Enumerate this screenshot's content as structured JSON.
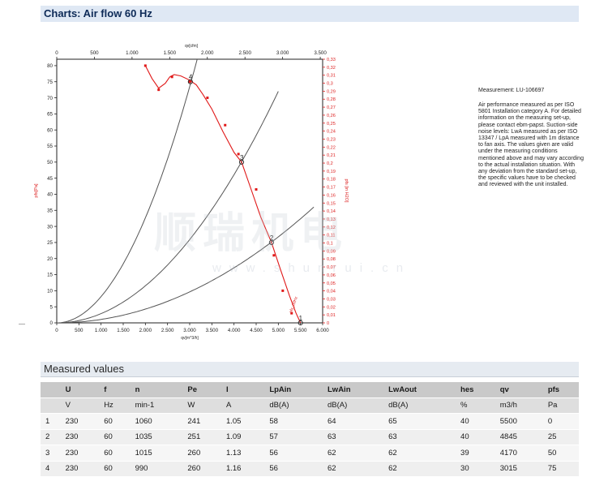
{
  "header": {
    "title": "Charts: Air flow 60 Hz"
  },
  "side_note": {
    "measurement": "Measurement: LU-106697",
    "text": "Air performance measured as per ISO 5801 Installation category A. For detailed information on the measuring set-up, please contact ebm-papst. Suction-side noise levels: LwA measured as per ISO 13347 / LpA measured with 1m distance to fan axis. The values given are valid under the measuring conditions mentioned above and may vary according to the actual installation situation. With any deviation from the standard set-up, the specific values have to be checked and reviewed with the unit installed."
  },
  "watermark": {
    "main": "顺瑞机电",
    "url": "www.shunrui.cn"
  },
  "chart_data": {
    "type": "line",
    "top_axis": {
      "label": "qv[cfm]",
      "ticks": [
        0,
        500,
        1000,
        1500,
        2000,
        2500,
        3000,
        3500
      ],
      "range": [
        0,
        3500
      ]
    },
    "bottom_axis": {
      "label": "qv[m^3/h]",
      "ticks": [
        0,
        500,
        1000,
        1500,
        2000,
        2500,
        3000,
        3500,
        4000,
        4500,
        5000,
        5500,
        6000
      ],
      "range": [
        0,
        6000
      ]
    },
    "left_axis": {
      "label": "pfs[Pa]",
      "ticks": [
        0,
        5,
        10,
        15,
        20,
        25,
        30,
        35,
        40,
        45,
        50,
        55,
        60,
        65,
        70,
        75,
        80
      ],
      "range": [
        0,
        82
      ]
    },
    "right_axis": {
      "label": "pfs [in H2O]",
      "ticks": [
        "0",
        "0.01",
        "0.02",
        "0.03",
        "0.04",
        "0.05",
        "0.06",
        "0.07",
        "0.08",
        "0.09",
        "0.1",
        "0.11",
        "0.12",
        "0.13",
        "0.14",
        "0.15",
        "0.16",
        "0.17",
        "0.18",
        "0.19",
        "0.2",
        "0.21",
        "0.22",
        "0.23",
        "0.24",
        "0.25",
        "0.26",
        "0.27",
        "0.28",
        "0.29",
        "0.3",
        "0.31",
        "0.32",
        "0.33"
      ],
      "range": [
        0,
        0.33
      ]
    },
    "fan_curve": {
      "x": [
        2000,
        2150,
        2300,
        2450,
        2550,
        2650,
        2800,
        3000,
        3150,
        3300,
        3500,
        3750,
        4000,
        4170,
        4400,
        4600,
        4845,
        5050,
        5250,
        5400,
        5500
      ],
      "y": [
        80,
        76,
        73,
        74.5,
        76.5,
        77.2,
        76.8,
        75.5,
        74,
        71,
        66.5,
        59.5,
        53,
        50,
        41,
        33,
        25,
        16.5,
        8.5,
        3,
        0
      ],
      "markers_x": [
        2000,
        2300,
        2600,
        3000,
        3400,
        3800,
        4100,
        4500,
        4900,
        5100,
        5300
      ],
      "markers_y": [
        80,
        72.5,
        76.5,
        75,
        70,
        61.5,
        52.5,
        41.5,
        21,
        10,
        3
      ]
    },
    "system_curves": [
      {
        "x": [
          0,
          1000,
          2000,
          3000,
          3500
        ],
        "y": [
          0,
          8.2,
          32.8,
          73.8,
          100
        ]
      },
      {
        "x": [
          0,
          1500,
          3000,
          4170,
          5000
        ],
        "y": [
          0,
          6.5,
          26,
          50,
          72
        ]
      },
      {
        "x": [
          0,
          1500,
          3000,
          4845,
          5800
        ],
        "y": [
          0,
          2.4,
          9.6,
          25,
          36
        ]
      }
    ],
    "operating_points": [
      {
        "label": "4",
        "x": 3015,
        "y": 75
      },
      {
        "label": "3",
        "x": 4170,
        "y": 50
      },
      {
        "label": "2",
        "x": 4845,
        "y": 25
      },
      {
        "label": "1",
        "x": 5500,
        "y": 0
      }
    ],
    "curve_label": "pfs_60Hz"
  },
  "table": {
    "section_title": "Measured values",
    "headers": [
      "",
      "U",
      "f",
      "n",
      "Pe",
      "I",
      "LpAin",
      "LwAin",
      "LwAout",
      "hes",
      "qv",
      "pfs"
    ],
    "units": [
      "",
      "V",
      "Hz",
      "min-1",
      "W",
      "A",
      "dB(A)",
      "dB(A)",
      "dB(A)",
      "%",
      "m3/h",
      "Pa"
    ],
    "rows": [
      [
        "1",
        "230",
        "60",
        "1060",
        "241",
        "1.05",
        "58",
        "64",
        "65",
        "40",
        "5500",
        "0"
      ],
      [
        "2",
        "230",
        "60",
        "1035",
        "251",
        "1.09",
        "57",
        "63",
        "63",
        "40",
        "4845",
        "25"
      ],
      [
        "3",
        "230",
        "60",
        "1015",
        "260",
        "1.13",
        "56",
        "62",
        "62",
        "39",
        "4170",
        "50"
      ],
      [
        "4",
        "230",
        "60",
        "990",
        "260",
        "1.16",
        "56",
        "62",
        "62",
        "30",
        "3015",
        "75"
      ]
    ]
  }
}
